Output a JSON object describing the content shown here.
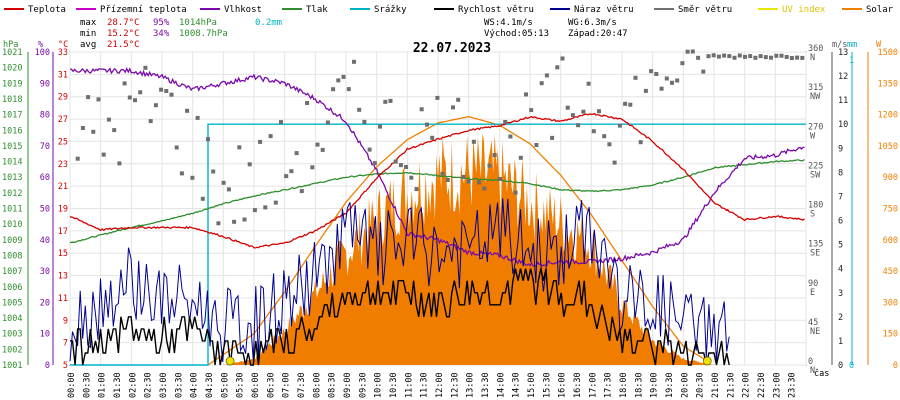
{
  "chart_data": {
    "type": "line",
    "title": "22.07.2023",
    "legend": [
      {
        "name": "Teplota",
        "color": "#d40000"
      },
      {
        "name": "Přízemní teplota",
        "color": "#c800c8"
      },
      {
        "name": "Vlhkost",
        "color": "#7a0aaa"
      },
      {
        "name": "Tlak",
        "color": "#2f8f2f"
      },
      {
        "name": "Srážky",
        "color": "#00b4c8"
      },
      {
        "name": "Rychlost větru",
        "color": "#000000"
      },
      {
        "name": "Náraz větru",
        "color": "#000090"
      },
      {
        "name": "Směr větru",
        "color": "#707070"
      },
      {
        "name": "UV index",
        "color": "#e8e800"
      },
      {
        "name": "Solar",
        "color": "#f08000"
      }
    ],
    "stats": {
      "max": {
        "label": "max",
        "temp": "28.7°C",
        "hum": "95%",
        "press": "1014hPa",
        "rain": "0.2mm"
      },
      "min": {
        "label": "min",
        "temp": "15.2°C",
        "hum": "34%",
        "press": "1008.7hPa"
      },
      "avg": {
        "label": "avg",
        "temp": "21.5°C"
      },
      "ws": "WS:4.1m/s",
      "wg": "WG:6.3m/s",
      "sunrise": "Východ:05:13",
      "sunset": "Západ:20:47"
    },
    "axes": {
      "press": {
        "unit": "hPa",
        "ticks": [
          "1001",
          "1002",
          "1003",
          "1004",
          "1005",
          "1006",
          "1007",
          "1008",
          "1009",
          "1010",
          "1011",
          "1012",
          "1013",
          "1014",
          "1015",
          "1016",
          "1017",
          "1018",
          "1019",
          "1020",
          "1021"
        ]
      },
      "hum": {
        "unit": "%",
        "ticks": [
          "0",
          "10",
          "20",
          "30",
          "40",
          "50",
          "60",
          "70",
          "80",
          "90",
          "100"
        ]
      },
      "temp": {
        "unit": "°C",
        "ticks": [
          "5",
          "7",
          "9",
          "11",
          "13",
          "15",
          "17",
          "19",
          "21",
          "23",
          "25",
          "27",
          "29",
          "31",
          "33"
        ]
      },
      "dir": {
        "ticks": [
          "0",
          "45",
          "90",
          "135",
          "180",
          "225",
          "270",
          "315",
          "360"
        ],
        "labels": [
          "N",
          "NE",
          "E",
          "SE",
          "S",
          "SW",
          "W",
          "NW",
          "N"
        ]
      },
      "wind": {
        "unit": "m/s",
        "ticks": [
          "0",
          "1",
          "2",
          "3",
          "4",
          "5",
          "6",
          "7",
          "8",
          "9",
          "10",
          "11",
          "12",
          "13"
        ]
      },
      "rain": {
        "unit": "mm",
        "ticks": [
          "0",
          "1"
        ]
      },
      "solar": {
        "unit": "W",
        "ticks": [
          "0",
          "150",
          "300",
          "450",
          "600",
          "750",
          "900",
          "1050",
          "1200",
          "1350",
          "1500"
        ]
      },
      "x": {
        "label": "čas",
        "ticks": [
          "00:00",
          "00:30",
          "01:00",
          "01:30",
          "02:00",
          "02:30",
          "03:00",
          "03:30",
          "04:00",
          "04:30",
          "05:00",
          "05:30",
          "06:00",
          "06:30",
          "07:00",
          "07:30",
          "08:00",
          "08:30",
          "09:00",
          "09:30",
          "10:00",
          "10:30",
          "11:00",
          "11:30",
          "12:00",
          "12:30",
          "13:00",
          "13:30",
          "14:00",
          "14:30",
          "15:00",
          "15:30",
          "16:00",
          "16:30",
          "17:00",
          "17:30",
          "18:00",
          "18:30",
          "19:00",
          "19:30",
          "20:00",
          "20:30",
          "21:00",
          "21:30",
          "22:00",
          "22:30",
          "23:00",
          "23:30"
        ]
      }
    },
    "series": {
      "temperature": {
        "x": [
          0,
          1,
          2,
          3,
          4,
          5,
          6,
          7,
          8,
          9,
          10,
          11,
          12,
          13,
          14,
          15,
          16,
          17,
          18,
          19,
          20,
          21,
          22,
          23,
          24
        ],
        "values": [
          18.3,
          17.1,
          17.3,
          17.3,
          17.3,
          16.5,
          15.5,
          15.9,
          17.0,
          18.6,
          21.7,
          24.3,
          25.2,
          26.0,
          26.4,
          27.2,
          26.8,
          27.5,
          27.0,
          25.0,
          22.5,
          19.5,
          18.0,
          18.3,
          18.0
        ]
      },
      "humidity": {
        "x": [
          0,
          1,
          2,
          3,
          4,
          5,
          6,
          7,
          8,
          9,
          10,
          11,
          12,
          13,
          14,
          15,
          16,
          17,
          18,
          19,
          20,
          21,
          22,
          23,
          24
        ],
        "values": [
          94,
          94,
          94,
          92,
          88,
          90,
          92,
          90,
          85,
          78,
          62,
          42,
          40,
          36,
          35,
          32,
          33,
          33,
          34,
          36,
          40,
          55,
          66,
          67,
          70
        ]
      },
      "pressure": {
        "x": [
          0,
          1,
          2,
          3,
          4,
          5,
          6,
          7,
          8,
          9,
          10,
          11,
          12,
          13,
          14,
          15,
          16,
          17,
          18,
          19,
          20,
          21,
          22,
          23,
          24
        ],
        "values": [
          1008.8,
          1009.3,
          1009.8,
          1010.2,
          1010.7,
          1011.3,
          1011.8,
          1012.2,
          1012.6,
          1013.0,
          1013.2,
          1013.3,
          1013.1,
          1012.9,
          1012.8,
          1012.6,
          1012.2,
          1012.1,
          1012.2,
          1012.5,
          1013.0,
          1013.6,
          1013.8,
          1014.0,
          1014.1
        ]
      },
      "rain": {
        "note": "0.2mm from 04:30",
        "x": [
          0,
          4.5,
          4.5,
          24
        ],
        "values": [
          0,
          0,
          0.2,
          0.2
        ]
      },
      "solar": {
        "x": [
          5,
          6,
          7,
          8,
          9,
          10,
          11,
          12,
          13,
          14,
          15,
          16,
          17,
          18,
          19,
          20,
          21
        ],
        "values": [
          0,
          30,
          170,
          350,
          550,
          720,
          850,
          930,
          950,
          920,
          800,
          700,
          600,
          300,
          120,
          30,
          0
        ]
      },
      "solar_clear_sky": {
        "x": [
          4.5,
          6,
          7,
          8,
          9,
          10,
          11,
          12,
          13,
          14,
          15,
          16,
          17,
          18,
          19,
          20,
          21
        ],
        "values": [
          0,
          150,
          350,
          570,
          780,
          950,
          1080,
          1160,
          1190,
          1150,
          1060,
          910,
          720,
          500,
          280,
          90,
          0
        ]
      },
      "wind_speed": {
        "x": [
          0,
          1,
          2,
          3,
          4,
          5,
          6,
          7,
          8,
          9,
          10,
          11,
          12,
          13,
          14,
          15,
          16,
          17,
          18,
          19,
          20,
          21
        ],
        "values": [
          0.5,
          1,
          1.5,
          1,
          1.5,
          0.5,
          0.5,
          1,
          1.5,
          3,
          3,
          3,
          2.5,
          3,
          3,
          3.5,
          3,
          2.5,
          1,
          1,
          0.5,
          0.5
        ]
      },
      "wind_gust": {
        "x": [
          0,
          1,
          2,
          3,
          4,
          5,
          6,
          7,
          8,
          9,
          10,
          11,
          12,
          13,
          14,
          15,
          16,
          17,
          18,
          19,
          20,
          21,
          22
        ],
        "values": [
          1,
          2,
          3,
          2,
          2,
          1,
          1,
          2,
          3,
          5,
          4,
          4.5,
          4,
          4,
          5,
          4,
          4,
          5,
          2,
          2,
          1,
          1,
          0.5
        ]
      },
      "wind_dir": {
        "x": [
          0,
          1,
          2,
          3,
          4,
          5,
          6,
          7,
          8,
          9,
          10,
          11,
          12,
          13,
          14,
          15,
          16,
          17,
          18,
          19,
          20,
          21,
          22,
          23,
          24
        ],
        "values": [
          270,
          260,
          290,
          300,
          250,
          200,
          210,
          230,
          260,
          300,
          280,
          250,
          270,
          260,
          240,
          260,
          300,
          310,
          280,
          320,
          340,
          355,
          355,
          355,
          355
        ]
      }
    }
  }
}
